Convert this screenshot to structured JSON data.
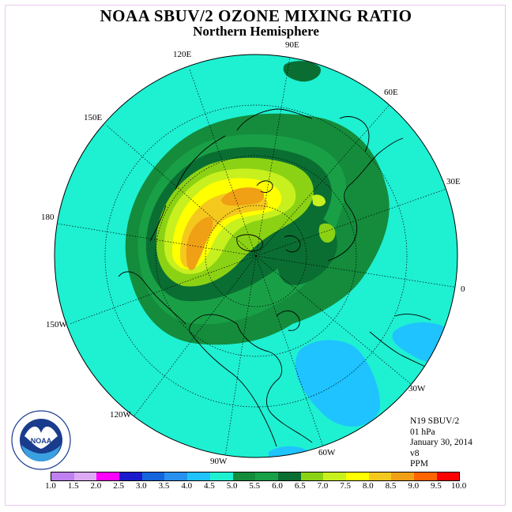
{
  "title": "NOAA SBUV/2 OZONE MIXING RATIO",
  "subtitle": "Northern Hemisphere",
  "longitude_labels": {
    "e90": "90E",
    "e60": "60E",
    "e30": "30E",
    "zero": "0",
    "w30": "30W",
    "w60": "60W",
    "w90": "90W",
    "w120": "120W",
    "w150": "150W",
    "deg180": "180",
    "e150": "150E",
    "e120": "120E"
  },
  "info": {
    "satellite": "N19 SBUV/2",
    "level": "01 hPa",
    "date": "January 30, 2014",
    "version": "v8",
    "units": "PPM"
  },
  "legend": {
    "ticks": [
      "1.0",
      "1.5",
      "2.0",
      "2.5",
      "3.0",
      "3.5",
      "4.0",
      "4.5",
      "5.0",
      "5.5",
      "6.0",
      "6.5",
      "7.0",
      "7.5",
      "8.0",
      "8.5",
      "9.0",
      "9.5",
      "10.0"
    ],
    "colors": [
      "#bf80f0",
      "#dcaaf5",
      "#ff00ff",
      "#1a1acc",
      "#1464dc",
      "#2891f0",
      "#1ec3ff",
      "#1ef0d2",
      "#148c3c",
      "#19a046",
      "#0a6e32",
      "#8cd214",
      "#c8f01e",
      "#ffff00",
      "#f5c81e",
      "#f0a014",
      "#ff6400",
      "#ff0000",
      "#8b5a3c"
    ]
  },
  "colors": {
    "background_field": "#1ef0d2",
    "polar_border": "#000000"
  }
}
